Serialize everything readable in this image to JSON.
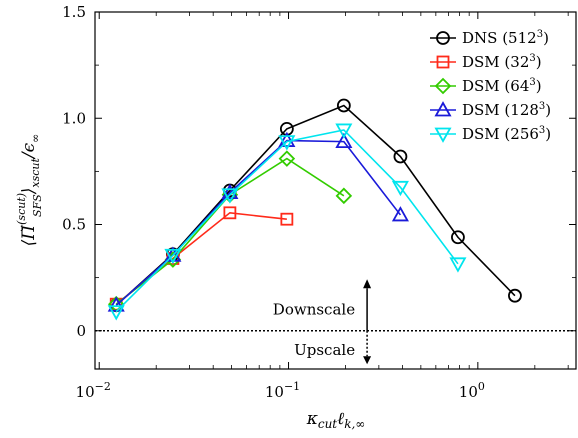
{
  "chart_data": {
    "type": "line",
    "title": "",
    "xlabel": "κcutℓk,∞",
    "ylabel": "⟨Π̆(scut)SFS⟩xscut/ϵ∞",
    "x_scale": "log",
    "xlim": [
      0.0095,
      3.3
    ],
    "ylim": [
      -0.18,
      1.5
    ],
    "x_ticks": [
      {
        "value": 0.01,
        "mantissa": "10",
        "exponent": "−2"
      },
      {
        "value": 0.1,
        "mantissa": "10",
        "exponent": "−1"
      },
      {
        "value": 1,
        "mantissa": "10",
        "exponent": "0"
      }
    ],
    "y_ticks": [
      {
        "value": 0,
        "label": "0"
      },
      {
        "value": 0.5,
        "label": "0.5"
      },
      {
        "value": 1.0,
        "label": "1.0"
      },
      {
        "value": 1.5,
        "label": "1.5"
      }
    ],
    "grid": false,
    "legend_position": "top-right",
    "series": [
      {
        "name": "DNS (512³)",
        "base": "DNS (512",
        "sup": "3",
        "tail": ")",
        "color": "#000000",
        "marker": "circle",
        "x": [
          0.0123,
          0.0245,
          0.049,
          0.098,
          0.196,
          0.39,
          0.785,
          1.57
        ],
        "y": [
          0.12,
          0.36,
          0.66,
          0.95,
          1.06,
          0.82,
          0.44,
          0.165
        ]
      },
      {
        "name": "DSM (32³)",
        "base": "DSM (32",
        "sup": "3",
        "tail": ")",
        "color": "#ff2a1a",
        "marker": "square",
        "x": [
          0.0123,
          0.0245,
          0.049,
          0.098
        ],
        "y": [
          0.125,
          0.34,
          0.555,
          0.525
        ]
      },
      {
        "name": "DSM (64³)",
        "base": "DSM (64",
        "sup": "3",
        "tail": ")",
        "color": "#33cc00",
        "marker": "diamond",
        "x": [
          0.0123,
          0.0245,
          0.049,
          0.098,
          0.196
        ],
        "y": [
          0.125,
          0.335,
          0.64,
          0.81,
          0.635
        ]
      },
      {
        "name": "DSM (128³)",
        "base": "DSM (128",
        "sup": "3",
        "tail": ")",
        "color": "#1a1ad9",
        "marker": "triangle-up",
        "x": [
          0.0123,
          0.0245,
          0.049,
          0.098,
          0.196,
          0.39
        ],
        "y": [
          0.12,
          0.355,
          0.65,
          0.895,
          0.89,
          0.545
        ]
      },
      {
        "name": "DSM (256³)",
        "base": "DSM (256",
        "sup": "3",
        "tail": ")",
        "color": "#00e5ee",
        "marker": "triangle-down",
        "x": [
          0.0123,
          0.0245,
          0.049,
          0.098,
          0.196,
          0.39,
          0.785
        ],
        "y": [
          0.09,
          0.355,
          0.64,
          0.89,
          0.945,
          0.675,
          0.315
        ]
      }
    ],
    "annotations": {
      "downscale": "Downscale",
      "upscale": "Upscale",
      "arrow_x": 0.26
    }
  }
}
